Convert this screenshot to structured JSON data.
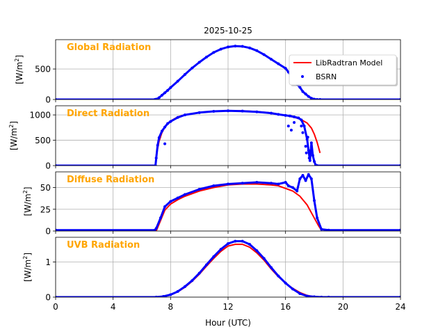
{
  "figure_title": "2025-10-25",
  "legend": {
    "location": "top-right",
    "entries": [
      {
        "label": "LibRadtran Model",
        "kind": "line",
        "color": "#ff0000"
      },
      {
        "label": "BSRN",
        "kind": "marker",
        "color": "#0000ff"
      }
    ]
  },
  "colors": {
    "model": "#ff0000",
    "bsrn": "#0000ff",
    "panel_label": "#ffa500",
    "grid": "#b0b0b0"
  },
  "chart_data": [
    {
      "type": "scatter",
      "title": "Global Radiation",
      "ylabel_text": "[W/m",
      "ylabel_sup": "2",
      "ylabel_end": "]",
      "xlim": [
        0,
        24
      ],
      "ylim": [
        0,
        980
      ],
      "yticks": [
        0,
        500
      ],
      "xticks": [
        0,
        4,
        8,
        12,
        16,
        20,
        24
      ],
      "show_x_ticklabels": false,
      "grid": true,
      "series": [
        {
          "name": "LibRadtran Model",
          "style": "line",
          "x": [],
          "y": []
        },
        {
          "name": "BSRN",
          "style": "marker",
          "x": [
            0,
            6.9,
            7.0,
            7.2,
            7.4,
            7.6,
            7.8,
            8.0,
            8.5,
            9.0,
            9.5,
            10.0,
            10.5,
            11.0,
            11.5,
            12.0,
            12.5,
            13.0,
            13.5,
            14.0,
            14.5,
            15.0,
            15.5,
            16.0,
            16.2,
            16.4,
            16.6,
            16.8,
            17.0,
            17.2,
            17.4,
            17.6,
            17.8,
            18.0,
            18.2,
            18.4,
            24
          ],
          "y": [
            0,
            0,
            5,
            30,
            70,
            110,
            150,
            195,
            300,
            410,
            515,
            610,
            695,
            770,
            825,
            860,
            875,
            870,
            845,
            800,
            735,
            660,
            585,
            510,
            450,
            390,
            320,
            250,
            200,
            130,
            90,
            50,
            20,
            5,
            0,
            0,
            0
          ]
        }
      ]
    },
    {
      "type": "line",
      "title": "Direct Radiation",
      "ylabel_text": "[W/m",
      "ylabel_sup": "2",
      "ylabel_end": "]",
      "xlim": [
        0,
        24
      ],
      "ylim": [
        0,
        1180
      ],
      "yticks": [
        0,
        500,
        1000
      ],
      "xticks": [
        0,
        4,
        8,
        12,
        16,
        20,
        24
      ],
      "show_x_ticklabels": false,
      "grid": true,
      "series": [
        {
          "name": "LibRadtran Model",
          "style": "line",
          "x": [
            7.0,
            7.2,
            7.4,
            7.6,
            7.8,
            8.0,
            8.5,
            9.0,
            10.0,
            11.0,
            12.0,
            13.0,
            14.0,
            15.0,
            16.0,
            16.5,
            17.0,
            17.5,
            17.8,
            18.0,
            18.2,
            18.4
          ],
          "y": [
            200,
            480,
            650,
            760,
            830,
            880,
            960,
            1005,
            1045,
            1070,
            1080,
            1080,
            1065,
            1040,
            990,
            960,
            920,
            840,
            740,
            620,
            460,
            250
          ]
        },
        {
          "name": "BSRN",
          "style": "marker",
          "x": [
            0,
            6.95,
            7.0,
            7.1,
            7.2,
            7.4,
            7.6,
            7.8,
            8.0,
            8.5,
            9.0,
            10.0,
            11.0,
            12.0,
            13.0,
            14.0,
            15.0,
            15.5,
            16.0,
            16.3,
            16.6,
            16.9,
            17.1,
            17.3,
            17.5,
            17.6,
            17.7,
            17.8,
            17.9,
            18.0,
            18.1,
            18.2,
            24
          ],
          "y": [
            0,
            0,
            150,
            400,
            550,
            680,
            760,
            830,
            870,
            950,
            1000,
            1045,
            1070,
            1080,
            1075,
            1060,
            1035,
            1010,
            990,
            980,
            960,
            940,
            900,
            780,
            520,
            300,
            100,
            450,
            200,
            80,
            10,
            0,
            0
          ]
        },
        {
          "name": "BSRN",
          "style": "scatter-only",
          "x": [
            7.6,
            16.2,
            16.4,
            16.6,
            17.1,
            17.2,
            17.4,
            17.45,
            17.55,
            17.65
          ],
          "y": [
            430,
            780,
            700,
            850,
            780,
            650,
            380,
            250,
            560,
            150
          ]
        }
      ]
    },
    {
      "type": "line",
      "title": "Diffuse Radiation",
      "ylabel_text": "[W/m",
      "ylabel_sup": "2",
      "ylabel_end": "]",
      "xlim": [
        0,
        24
      ],
      "ylim": [
        0,
        68
      ],
      "yticks": [
        0,
        25,
        50
      ],
      "xticks": [
        0,
        4,
        8,
        12,
        16,
        20,
        24
      ],
      "show_x_ticklabels": false,
      "grid": true,
      "series": [
        {
          "name": "LibRadtran Model",
          "style": "line",
          "x": [
            7.0,
            7.3,
            7.6,
            8.0,
            8.5,
            9.0,
            10.0,
            11.0,
            12.0,
            13.0,
            14.0,
            15.0,
            15.5,
            16.0,
            16.5,
            17.0,
            17.5,
            18.0,
            18.3,
            18.5
          ],
          "y": [
            0,
            12,
            24,
            31,
            36,
            40,
            46,
            50,
            53,
            54,
            54,
            53,
            52,
            49,
            46,
            40,
            30,
            15,
            6,
            1
          ]
        },
        {
          "name": "BSRN",
          "style": "marker",
          "x": [
            0,
            6.9,
            7.0,
            7.3,
            7.6,
            8.0,
            8.5,
            9.0,
            10.0,
            11.0,
            12.0,
            13.0,
            14.0,
            15.0,
            15.5,
            16.0,
            16.2,
            16.5,
            16.8,
            17.0,
            17.2,
            17.4,
            17.6,
            17.8,
            18.0,
            18.2,
            18.5,
            19.0,
            24
          ],
          "y": [
            1,
            1,
            3,
            15,
            28,
            34,
            38,
            42,
            48,
            52,
            54,
            55,
            56,
            55,
            54,
            56,
            52,
            50,
            46,
            60,
            64,
            58,
            65,
            60,
            35,
            15,
            2,
            1,
            1
          ]
        }
      ]
    },
    {
      "type": "line",
      "title": "UVB Radiation",
      "ylabel_text": "[W/m",
      "ylabel_sup": "2",
      "ylabel_end": "]",
      "xlim": [
        0,
        24
      ],
      "ylim": [
        0,
        1.7
      ],
      "yticks": [
        0,
        1
      ],
      "xticks": [
        0,
        4,
        8,
        12,
        16,
        20,
        24
      ],
      "show_x_ticklabels": true,
      "xlabel": "Hour (UTC)",
      "grid": true,
      "series": [
        {
          "name": "LibRadtran Model",
          "style": "line",
          "x": [
            7.0,
            7.5,
            8.0,
            8.5,
            9.0,
            9.5,
            10.0,
            10.5,
            11.0,
            11.5,
            12.0,
            12.5,
            13.0,
            13.5,
            14.0,
            14.5,
            15.0,
            15.5,
            16.0,
            16.5,
            17.0,
            17.5,
            18.0,
            18.5
          ],
          "y": [
            0.0,
            0.02,
            0.06,
            0.15,
            0.28,
            0.45,
            0.65,
            0.88,
            1.1,
            1.3,
            1.45,
            1.5,
            1.5,
            1.42,
            1.26,
            1.05,
            0.8,
            0.58,
            0.4,
            0.25,
            0.13,
            0.05,
            0.01,
            0.0
          ]
        },
        {
          "name": "BSRN",
          "style": "marker",
          "x": [
            0,
            7.0,
            7.5,
            8.0,
            8.5,
            9.0,
            9.5,
            10.0,
            10.5,
            11.0,
            11.5,
            12.0,
            12.5,
            13.0,
            13.5,
            14.0,
            14.5,
            15.0,
            15.5,
            16.0,
            16.5,
            17.0,
            17.5,
            18.0,
            18.5,
            19.0,
            24
          ],
          "y": [
            0,
            0.0,
            0.02,
            0.07,
            0.16,
            0.3,
            0.47,
            0.68,
            0.92,
            1.15,
            1.36,
            1.52,
            1.59,
            1.59,
            1.5,
            1.32,
            1.1,
            0.84,
            0.6,
            0.4,
            0.23,
            0.1,
            0.03,
            0.01,
            0.0,
            0.0,
            0
          ]
        }
      ]
    }
  ]
}
